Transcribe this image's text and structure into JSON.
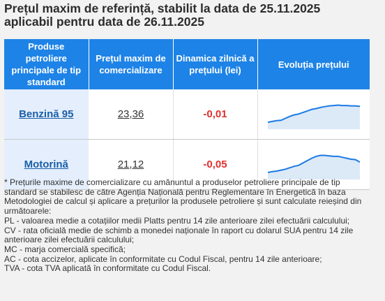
{
  "heading": {
    "line1": "Prețul maxim de referință, stabilit la data de 25.11.2025",
    "line2": "aplicabil pentru data de 26.11.2025"
  },
  "table": {
    "headers": [
      "Produse petroliere principale de tip standard",
      "Prețul maxim de comercializare",
      "Dinamica zilnică a prețului (lei)",
      "Evoluția prețului"
    ],
    "rows": [
      {
        "product": "Benzină 95",
        "price": "23,36",
        "change": "-0,01",
        "trend": [
          22.95,
          22.97,
          22.99,
          23.0,
          23.05,
          23.1,
          23.14,
          23.16,
          23.2,
          23.24,
          23.28,
          23.3,
          23.33,
          23.35,
          23.37,
          23.38,
          23.39,
          23.38,
          23.38,
          23.37,
          23.37,
          23.36
        ]
      },
      {
        "product": "Motorină",
        "price": "21,12",
        "change": "-0,05",
        "trend": [
          20.9,
          20.92,
          20.93,
          20.95,
          20.97,
          21.0,
          21.03,
          21.05,
          21.1,
          21.15,
          21.2,
          21.24,
          21.26,
          21.26,
          21.25,
          21.24,
          21.24,
          21.22,
          21.2,
          21.18,
          21.17,
          21.12
        ]
      }
    ]
  },
  "colors": {
    "header_bg": "#1e83e6",
    "spark_line": "#1a7ae6",
    "spark_fill": "#dce9f7",
    "change_negative": "#e03030",
    "link": "#1a5fa8"
  },
  "notes": [
    "* Prețurile maxime de comercializare cu amănuntul a produselor petroliere principale de tip standard se stabilesc de către Agenția Națională pentru Reglementare în Energetică în baza Metodologiei de calcul și aplicare a prețurilor la produsele petroliere și sunt calculate reieșind din următoarele:",
    "PL - valoarea medie a cotațiilor medii Platts pentru 14 zile anterioare zilei efectuării calculului;",
    "CV - rata oficială medie de schimb a monedei naționale în raport cu dolarul SUA pentru 14 zile anterioare zilei efectuării calculului;",
    "MC - marja comercială specifică;",
    "AC - cota accizelor, aplicate în conformitate cu Codul Fiscal, pentru 14 zile anterioare;",
    "TVA - cota TVA aplicată în conformitate cu Codul Fiscal."
  ]
}
